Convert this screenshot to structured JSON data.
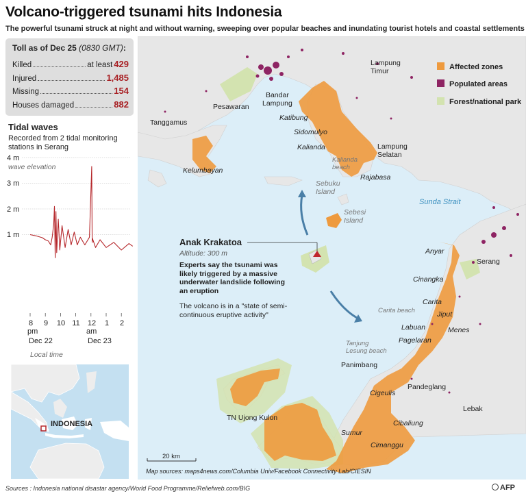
{
  "header": {
    "title": "Volcano-triggered tsunami hits Indonesia",
    "subtitle": "The powerful tsunami struck at night and without warning, sweeping over popular beaches and inundating tourist hotels and coastal settlements"
  },
  "toll": {
    "heading": "Toll as of Dec 25",
    "heading_time": "(0830 GMT)",
    "heading_colon": ":",
    "rows": [
      {
        "label": "Killed",
        "prefix": "at least",
        "value": "429"
      },
      {
        "label": "Injured",
        "prefix": "",
        "value": "1,485"
      },
      {
        "label": "Missing",
        "prefix": "",
        "value": "154"
      },
      {
        "label": "Houses damaged",
        "prefix": "",
        "value": "882"
      }
    ]
  },
  "tidal": {
    "title": "Tidal waves",
    "subtitle": "Recorded from 2 tidal monitoring stations in Serang",
    "wave_elevation": "wave elevation",
    "y_labels": [
      "4 m",
      "3 m",
      "2 m",
      "1 m"
    ],
    "x_ticks": [
      "8",
      "9",
      "10",
      "11",
      "12",
      "1",
      "2"
    ],
    "x_sub": {
      "pm": "pm",
      "am": "am",
      "dec22": "Dec 22",
      "dec23": "Dec 23"
    },
    "local_time": "Local time"
  },
  "chart_data": {
    "type": "line",
    "title": "Tidal waves",
    "ylabel": "wave elevation",
    "ylim": [
      0,
      4
    ],
    "x_axis": "Local time, hours from 8 pm Dec 22 to about 2:45 am Dec 23",
    "x_ticks": [
      "8 pm",
      "9",
      "10",
      "11",
      "12 am",
      "1",
      "2"
    ],
    "series": [
      {
        "x": [
          0,
          0.4,
          0.8,
          1.0,
          1.2,
          1.35,
          1.45,
          1.55,
          1.6,
          1.65,
          1.7,
          1.75,
          1.85,
          1.95,
          2.1,
          2.3,
          2.5,
          2.7,
          2.9,
          3.1,
          3.3,
          3.6,
          3.9,
          4.05,
          4.08,
          4.1,
          4.3,
          4.6,
          5.0,
          5.5,
          6.0,
          6.5,
          6.75
        ],
        "y": [
          1.0,
          0.95,
          0.88,
          0.8,
          0.75,
          0.6,
          0.9,
          1.4,
          2.1,
          0.1,
          1.9,
          0.3,
          1.6,
          0.4,
          1.35,
          0.5,
          1.2,
          0.6,
          1.1,
          0.6,
          0.9,
          0.6,
          0.9,
          3.65,
          0.7,
          0.85,
          0.5,
          0.8,
          0.5,
          0.7,
          0.4,
          0.65,
          0.55
        ]
      }
    ]
  },
  "map": {
    "legend": [
      {
        "label": "Affected zones",
        "color": "#ee9a3e"
      },
      {
        "label": "Populated areas",
        "color": "#8e2463"
      },
      {
        "label": "Forest/national park",
        "color": "#d3e3b0"
      }
    ],
    "places": {
      "lampung_timur": "Lampung\nTimur",
      "bandar_lampung": "Bandar\nLampung",
      "pesawaran": "Pesawaran",
      "tanggamus": "Tanggamus",
      "katibung": "Katibung",
      "sidomulyo": "Sidomulyo",
      "kalianda": "Kalianda",
      "lampung_selatan": "Lampung\nSelatan",
      "kalianda_beach": "Kalianda\nbeach",
      "rajabasa": "Rajabasa",
      "kelumbayan": "Kelumbayan",
      "sebuku": "Sebuku\nIsland",
      "sebesi": "Sebesi\nIsland",
      "sunda_strait": "Sunda Strait",
      "anyar": "Anyar",
      "serang": "Serang",
      "cinangka": "Cinangka",
      "carita": "Carita",
      "carita_beach": "Carita beach",
      "jiput": "Jiput",
      "labuan": "Labuan",
      "menes": "Menes",
      "pagelaran": "Pagelaran",
      "tanjung_lesung": "Tanjung\nLesung beach",
      "panimbang": "Panimbang",
      "pandeglang": "Pandeglang",
      "cigeulis": "Cigeulis",
      "lebak": "Lebak",
      "cibaliung": "Cibaliung",
      "sumur": "Sumur",
      "cimanggu": "Cimanggu",
      "ujung_kulon": "TN Ujong Kulon"
    },
    "volcano": {
      "name": "Anak Krakatoa",
      "altitude": "Altitude: 300 m",
      "note1": "Experts say the tsunami was likely triggered by a massive underwater landslide following an eruption",
      "note2": "The volcano is in a \"state of semi-continuous eruptive activity\""
    },
    "scale": "20 km",
    "sources": "Map sources: maps4news.com/Columbia Univ/Facebook Connectivity Lab/CIESIN"
  },
  "inset": {
    "label": "INDONESIA"
  },
  "footer": {
    "sources": "Sources : Indonesia national disastar agency/World Food Programme/Reliefweb.com/BIG",
    "credit": "AFP"
  }
}
